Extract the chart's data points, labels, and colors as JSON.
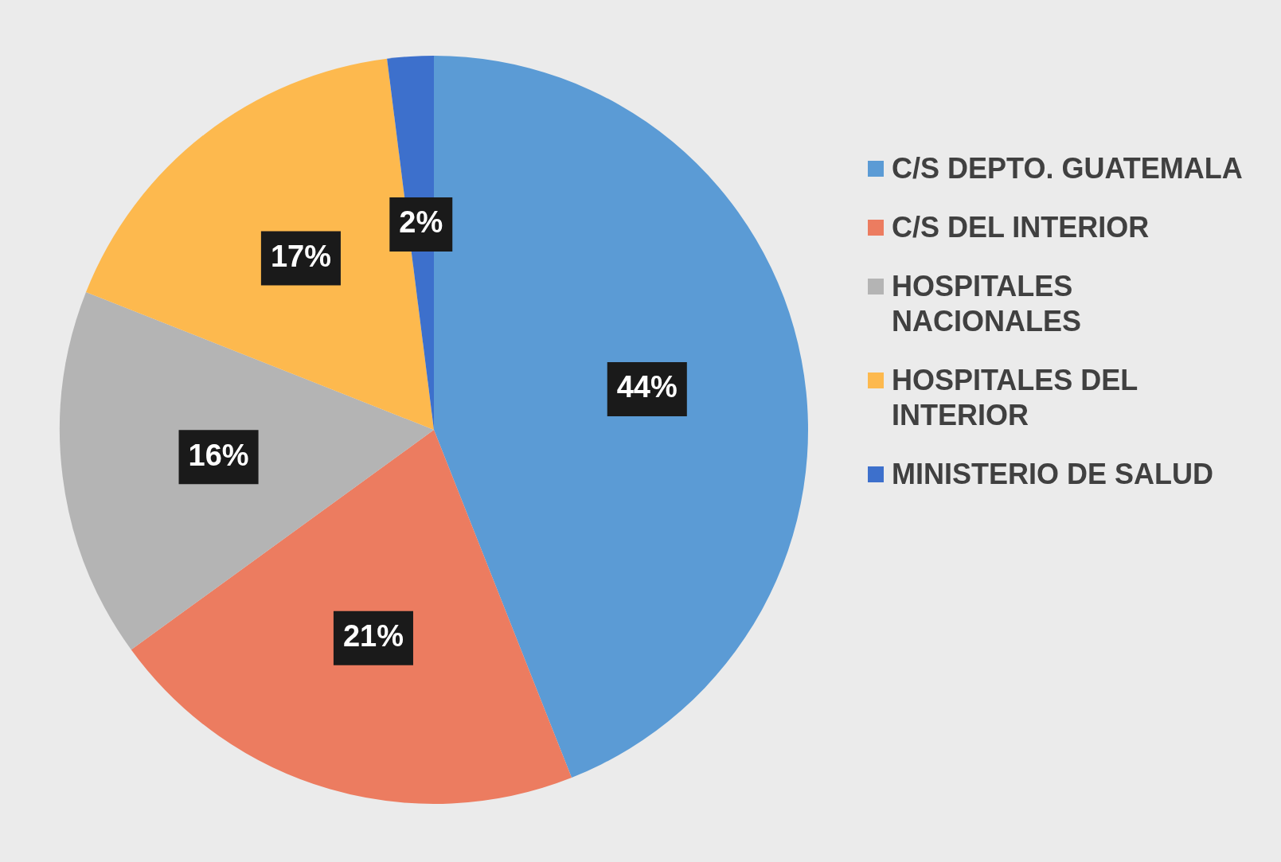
{
  "chart_data": {
    "type": "pie",
    "categories": [
      "C/S DEPTO. GUATEMALA",
      "C/S DEL INTERIOR",
      "HOSPITALES NACIONALES",
      "HOSPITALES DEL INTERIOR",
      "MINISTERIO DE SALUD"
    ],
    "values": [
      44,
      21,
      16,
      17,
      2
    ],
    "colors": [
      "#5b9bd5",
      "#ec7c60",
      "#b4b4b4",
      "#fdb94e",
      "#3d70cc"
    ],
    "value_labels": [
      "44%",
      "21%",
      "16%",
      "17%",
      "2%"
    ],
    "legend": "right"
  }
}
